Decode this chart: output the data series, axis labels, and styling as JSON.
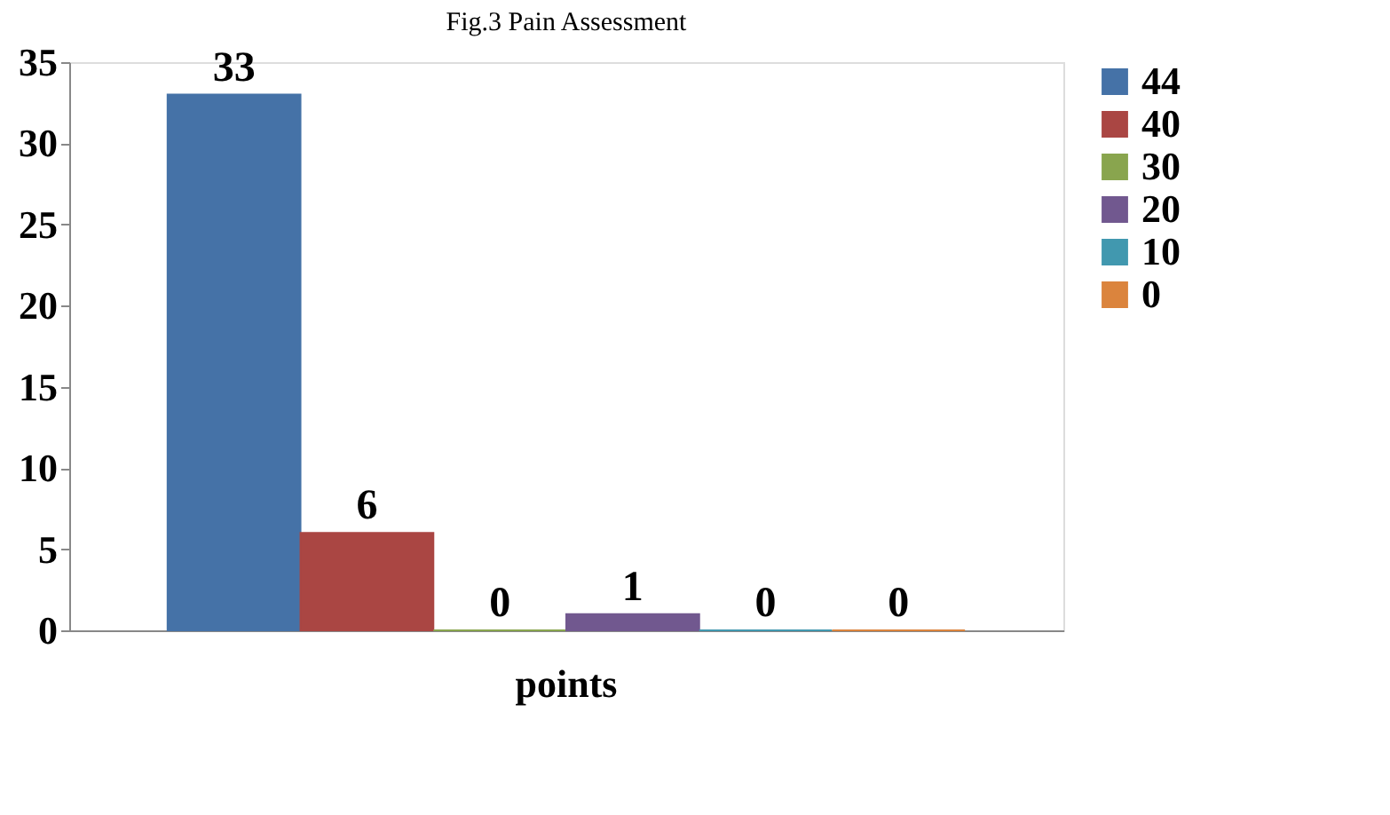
{
  "chart_data": {
    "type": "bar",
    "title": "Fig.3 Pain Assessment",
    "categories": [
      "points"
    ],
    "series": [
      {
        "name": "44",
        "color": "#4572a7",
        "values": [
          33
        ]
      },
      {
        "name": "40",
        "color": "#aa4643",
        "values": [
          6
        ]
      },
      {
        "name": "30",
        "color": "#89a54e",
        "values": [
          0
        ]
      },
      {
        "name": "20",
        "color": "#71588f",
        "values": [
          1
        ]
      },
      {
        "name": "10",
        "color": "#4198af",
        "values": [
          0
        ]
      },
      {
        "name": "0",
        "color": "#db843d",
        "values": [
          0
        ]
      }
    ],
    "ylim": [
      0,
      35
    ],
    "yticks": [
      0,
      5,
      10,
      15,
      20,
      25,
      30,
      35
    ],
    "grid": false,
    "legend": "right",
    "data_labels": true
  }
}
